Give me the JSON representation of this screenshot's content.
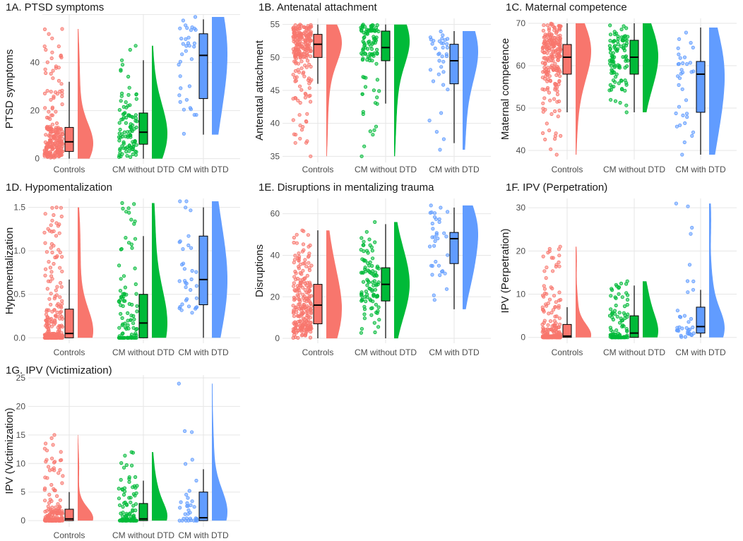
{
  "colors": {
    "controls": "#F8766D",
    "cm_without_dtd": "#00BA38",
    "cm_with_dtd": "#619CFF",
    "grid": "#E6E6E6",
    "axis_text": "#4D4D4D",
    "title_text": "#1A1A1A"
  },
  "chart_data": [
    {
      "type": "raincloud",
      "title": "1A. PTSD symptoms",
      "ylabel": "PTSD symptoms",
      "categories": [
        "Controls",
        "CM without DTD",
        "CM with DTD"
      ],
      "ylim": [
        -1,
        59
      ],
      "yticks": [
        0,
        20,
        40,
        60
      ],
      "tick_labels": [
        "0",
        "20",
        "40",
        ""
      ],
      "box": [
        {
          "min": 0,
          "q1": 3,
          "median": 7,
          "q3": 13,
          "max": 32
        },
        {
          "min": 0,
          "q1": 6,
          "median": 11,
          "q3": 19,
          "max": 41
        },
        {
          "min": 10,
          "q1": 25,
          "median": 43,
          "q3": 52,
          "max": 58
        }
      ],
      "points": [
        {
          "n": 220,
          "max": 54
        },
        {
          "n": 100,
          "max": 47
        },
        {
          "n": 35,
          "max": 59
        }
      ]
    },
    {
      "type": "raincloud",
      "title": "1B. Antenatal attachment",
      "ylabel": "Antenatal attachment",
      "categories": [
        "Controls",
        "CM without DTD",
        "CM with DTD"
      ],
      "ylim": [
        34.5,
        55.5
      ],
      "yticks": [
        35,
        40,
        45,
        50,
        55
      ],
      "tick_labels": [
        "35",
        "40",
        "45",
        "50",
        "55"
      ],
      "box": [
        {
          "min": 46,
          "q1": 50,
          "median": 52,
          "q3": 53.5,
          "max": 55
        },
        {
          "min": 43,
          "q1": 49.5,
          "median": 51.5,
          "q3": 54,
          "max": 55
        },
        {
          "min": 37,
          "q1": 46,
          "median": 49.5,
          "q3": 52,
          "max": 54
        }
      ],
      "points": [
        {
          "n": 220,
          "min": 35
        },
        {
          "n": 100,
          "min": 35
        },
        {
          "n": 35,
          "min": 36
        }
      ]
    },
    {
      "type": "raincloud",
      "title": "1C. Maternal competence",
      "ylabel": "Maternal competence",
      "categories": [
        "Controls",
        "CM without DTD",
        "CM with DTD"
      ],
      "ylim": [
        38.5,
        70.5
      ],
      "yticks": [
        40,
        50,
        60,
        70
      ],
      "tick_labels": [
        "40",
        "50",
        "60",
        "70"
      ],
      "box": [
        {
          "min": 49,
          "q1": 58,
          "median": 62,
          "q3": 65,
          "max": 70
        },
        {
          "min": 49,
          "q1": 58,
          "median": 62,
          "q3": 66,
          "max": 70
        },
        {
          "min": 39,
          "q1": 49,
          "median": 58,
          "q3": 61,
          "max": 69
        }
      ],
      "points": [
        {
          "n": 220,
          "min": 39
        },
        {
          "n": 100,
          "min": 49
        },
        {
          "n": 35,
          "min": 39
        }
      ]
    },
    {
      "type": "raincloud",
      "title": "1D. Hypomentalization",
      "ylabel": "Hypomentalization",
      "categories": [
        "Controls",
        "CM without DTD",
        "CM with DTD"
      ],
      "ylim": [
        -0.03,
        1.57
      ],
      "yticks": [
        0,
        0.5,
        1,
        1.5
      ],
      "tick_labels": [
        "0.0",
        "0.5",
        "1.0",
        "1.5"
      ],
      "box": [
        {
          "min": 0,
          "q1": 0,
          "median": 0.05,
          "q3": 0.33,
          "max": 0.67
        },
        {
          "min": 0,
          "q1": 0,
          "median": 0.17,
          "q3": 0.5,
          "max": 1.17
        },
        {
          "min": 0,
          "q1": 0.38,
          "median": 0.67,
          "q3": 1.17,
          "max": 1.5
        }
      ],
      "points": [
        {
          "n": 220,
          "max": 1.5
        },
        {
          "n": 100,
          "max": 1.55
        },
        {
          "n": 35,
          "max": 1.57
        }
      ]
    },
    {
      "type": "raincloud",
      "title": "1E. Disruptions in mentalizing trauma",
      "ylabel": "Disruptions",
      "categories": [
        "Controls",
        "CM without DTD",
        "CM with DTD"
      ],
      "ylim": [
        -1,
        66
      ],
      "yticks": [
        0,
        20,
        40,
        60
      ],
      "tick_labels": [
        "0",
        "20",
        "40",
        "60"
      ],
      "box": [
        {
          "min": 0,
          "q1": 7,
          "median": 16,
          "q3": 26,
          "max": 52
        },
        {
          "min": 0,
          "q1": 18,
          "median": 26,
          "q3": 34,
          "max": 55
        },
        {
          "min": 14,
          "q1": 36,
          "median": 48,
          "q3": 51,
          "max": 63
        }
      ],
      "points": [
        {
          "n": 220,
          "max": 52
        },
        {
          "n": 100,
          "max": 56
        },
        {
          "n": 35,
          "max": 64
        }
      ]
    },
    {
      "type": "raincloud",
      "title": "1F. IPV (Perpetration)",
      "ylabel": "IPV (Perpetration)",
      "categories": [
        "Controls",
        "CM without DTD",
        "CM with DTD"
      ],
      "ylim": [
        -0.7,
        31.5
      ],
      "yticks": [
        0,
        10,
        20,
        30
      ],
      "tick_labels": [
        "0",
        "10",
        "20",
        "30"
      ],
      "box": [
        {
          "min": 0,
          "q1": 0,
          "median": 0.3,
          "q3": 3,
          "max": 7
        },
        {
          "min": 0,
          "q1": 0,
          "median": 1,
          "q3": 5,
          "max": 12
        },
        {
          "min": 0,
          "q1": 1,
          "median": 2.5,
          "q3": 7,
          "max": 11
        }
      ],
      "points": [
        {
          "n": 220,
          "max": 21
        },
        {
          "n": 100,
          "max": 13
        },
        {
          "n": 35,
          "max": 31
        }
      ]
    },
    {
      "type": "raincloud",
      "title": "1G. IPV (Victimization)",
      "ylabel": "IPV (Victimization)",
      "categories": [
        "Controls",
        "CM without DTD",
        "CM with DTD"
      ],
      "ylim": [
        -0.6,
        25
      ],
      "yticks": [
        0,
        5,
        10,
        15,
        20,
        25
      ],
      "tick_labels": [
        "0",
        "5",
        "10",
        "15",
        "20",
        "25"
      ],
      "box": [
        {
          "min": 0,
          "q1": 0,
          "median": 0.3,
          "q3": 2,
          "max": 5
        },
        {
          "min": 0,
          "q1": 0,
          "median": 0.3,
          "q3": 3,
          "max": 7
        },
        {
          "min": 0,
          "q1": 0,
          "median": 0.5,
          "q3": 5,
          "max": 9
        }
      ],
      "points": [
        {
          "n": 220,
          "max": 15
        },
        {
          "n": 100,
          "max": 12
        },
        {
          "n": 35,
          "max": 24
        }
      ]
    }
  ]
}
